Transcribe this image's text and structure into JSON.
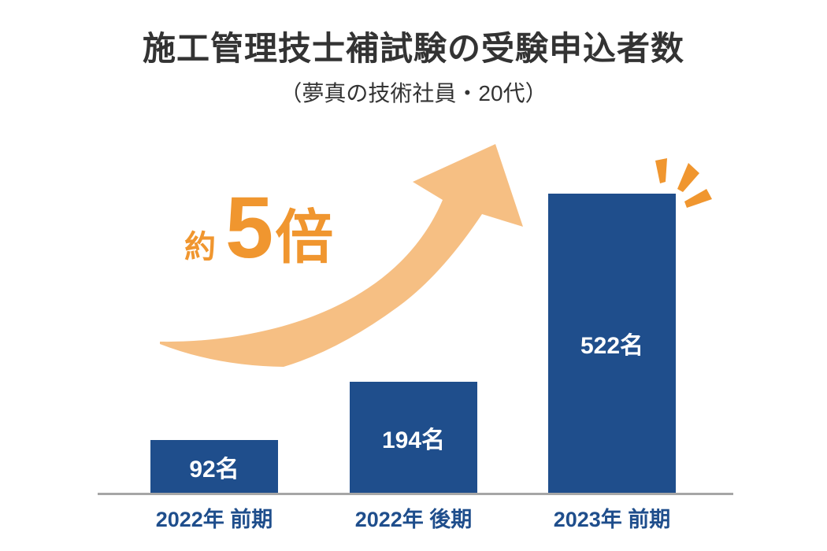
{
  "page": {
    "title": "施工管理技士補試験の受験申込者数",
    "subtitle": "（夢真の技術社員・20代）"
  },
  "annotation": {
    "prefix": "約",
    "number": "5",
    "suffix": "倍",
    "meaning": "約5倍"
  },
  "chart_data": {
    "type": "bar",
    "title": "施工管理技士補試験の受験申込者数",
    "subtitle": "（夢真の技術社員・20代）",
    "categories": [
      "2022年 前期",
      "2022年 後期",
      "2023年 前期"
    ],
    "values": [
      92,
      194,
      522
    ],
    "value_labels": [
      "92名",
      "194名",
      "522名"
    ],
    "unit": "名",
    "annotation": "約5倍",
    "ylim": [
      0,
      522
    ],
    "grid": false,
    "legend": "none",
    "decorations": [
      "growth-arrow",
      "sparkle-marks-on-tallest-bar"
    ],
    "colors": {
      "bar": "#1F4E8C",
      "bar_value_label": "#FFFFFF",
      "category_label": "#1F4E8C",
      "axis_line": "#A6A6A6",
      "arrow": "#F6BF83",
      "accent_orange": "#F0962F",
      "title_text": "#333333",
      "background": "#FFFFFF"
    }
  }
}
